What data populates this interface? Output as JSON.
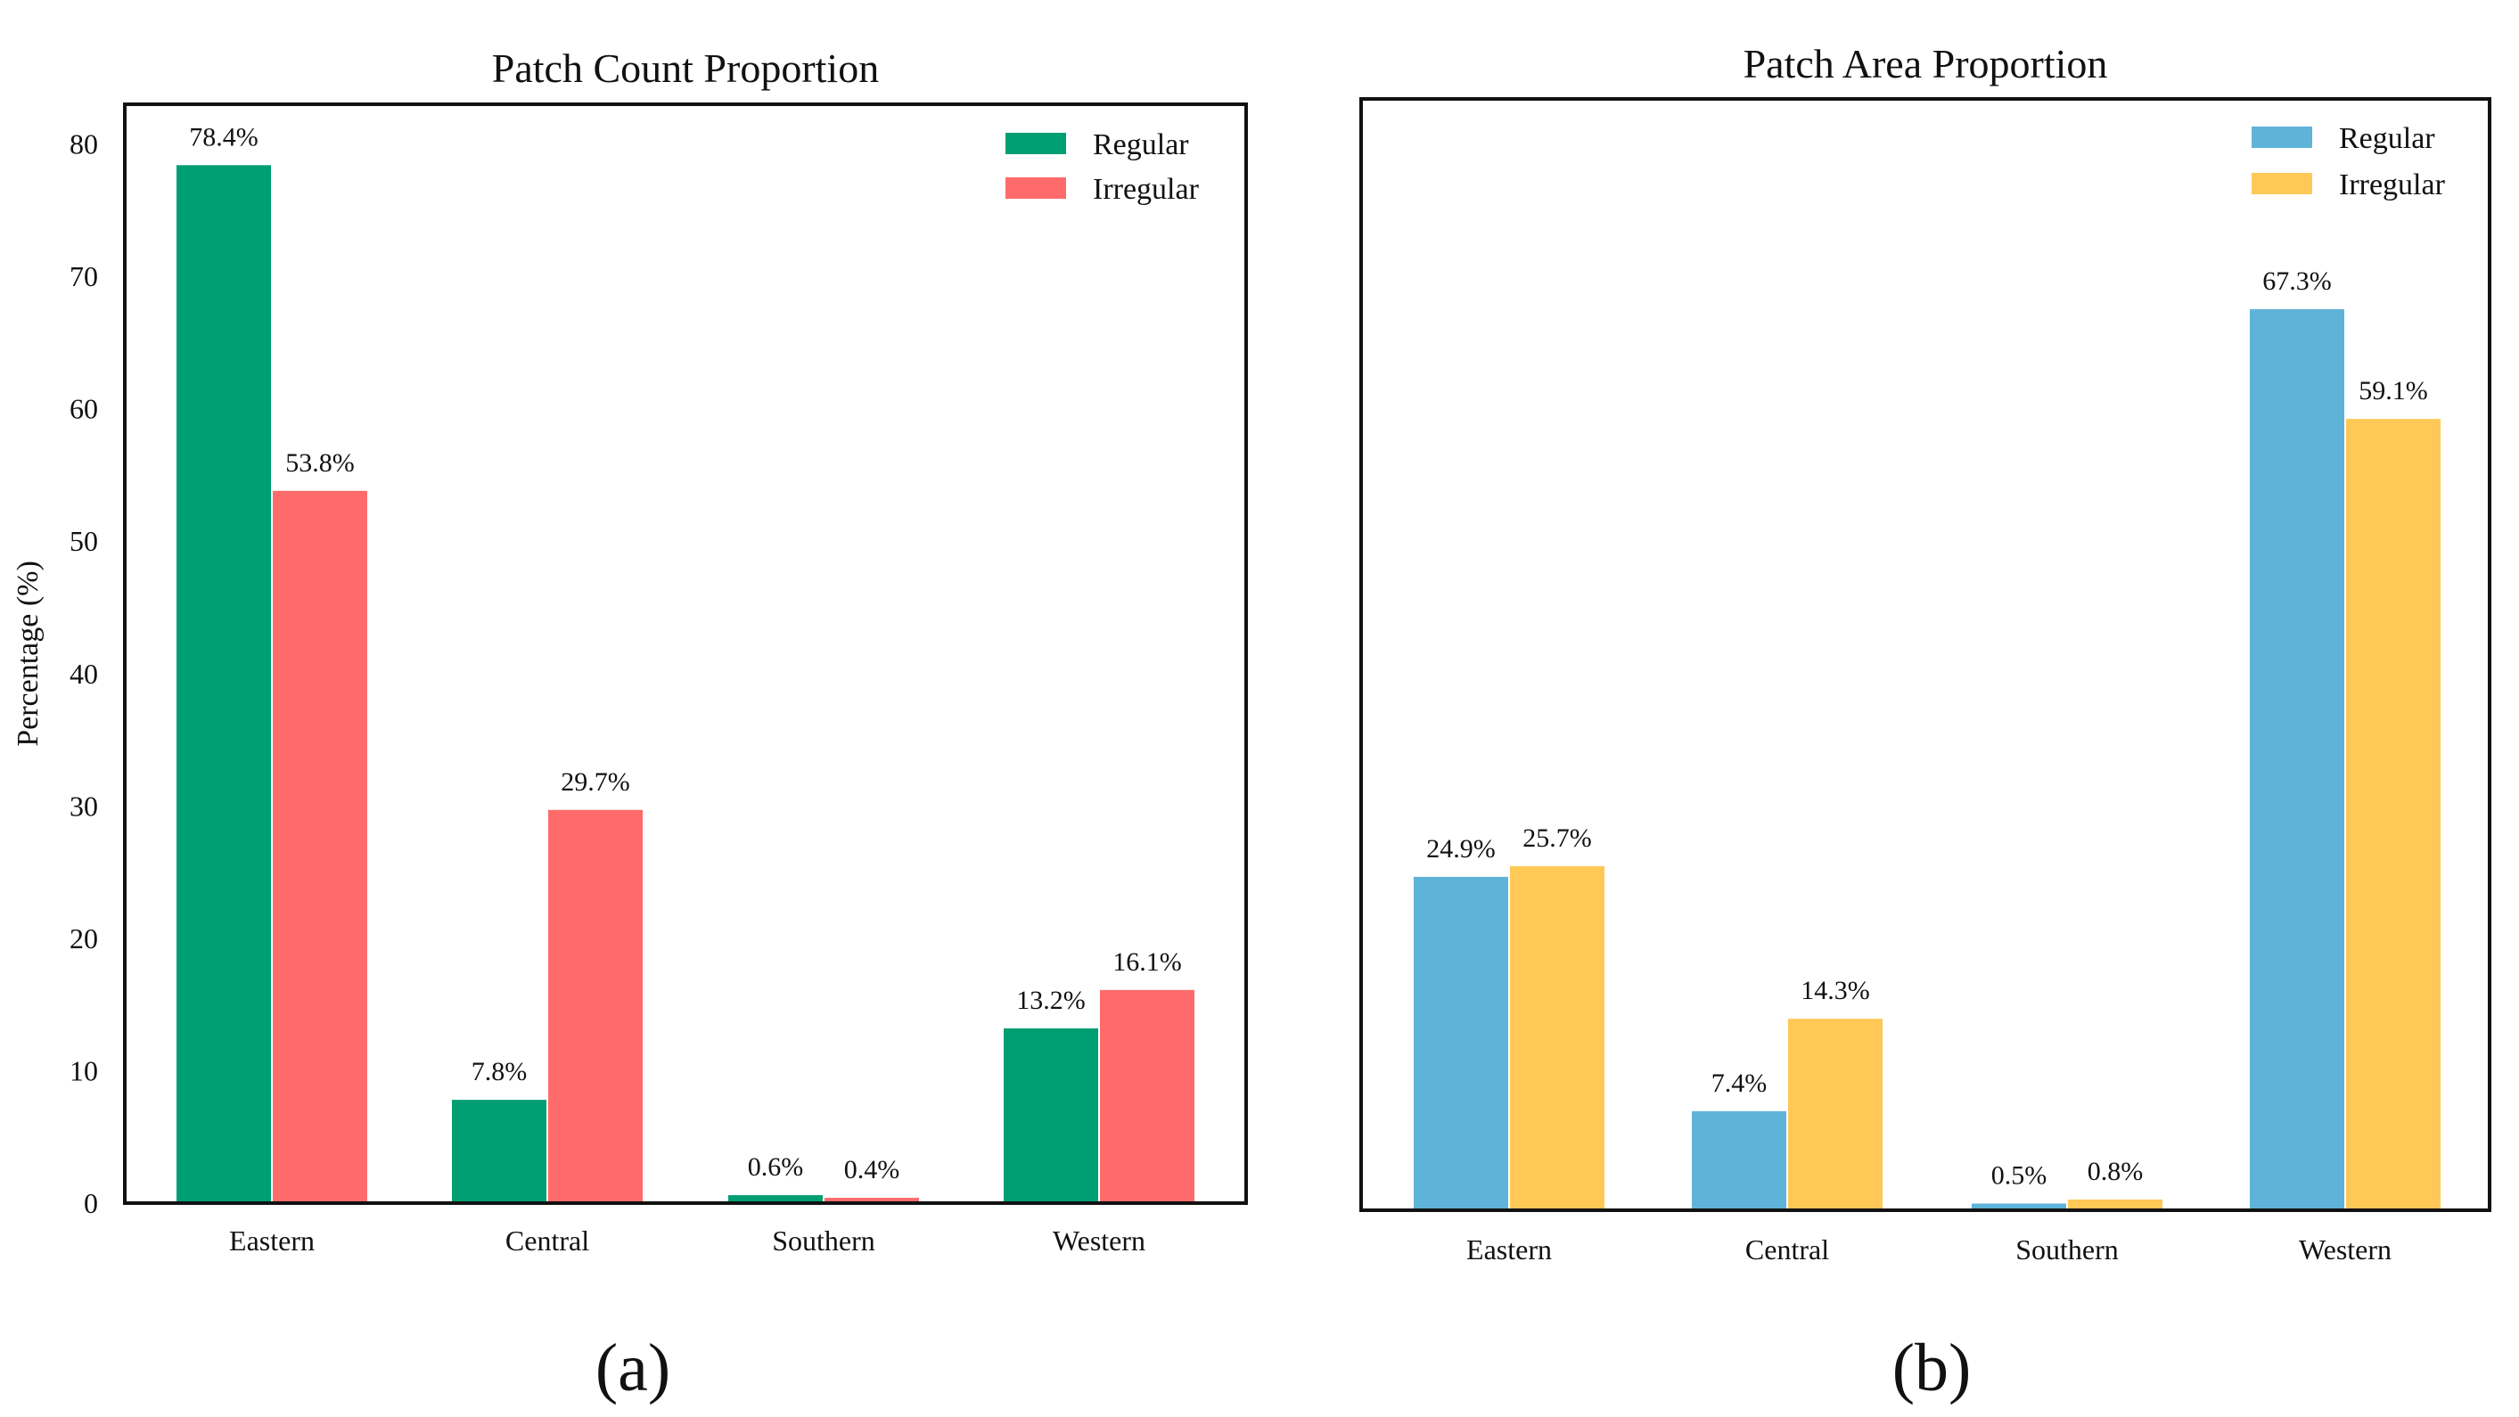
{
  "chart_data": [
    {
      "type": "bar",
      "title": "Patch Count Proportion",
      "xlabel": "",
      "ylabel": "Percentage (%)",
      "categories": [
        "Eastern",
        "Central",
        "Southern",
        "Western"
      ],
      "series": [
        {
          "name": "Regular",
          "color": "#009E73",
          "values": [
            78.4,
            7.8,
            0.6,
            13.2
          ],
          "labels": [
            "78.4%",
            "7.8%",
            "0.6%",
            "13.2%"
          ]
        },
        {
          "name": "Irregular",
          "color": "#FF6B6B",
          "values": [
            53.8,
            29.7,
            0.4,
            16.1
          ],
          "labels": [
            "53.8%",
            "29.7%",
            "0.4%",
            "16.1%"
          ]
        }
      ],
      "ylim": [
        0,
        83
      ],
      "yticks": [
        0,
        10,
        20,
        30,
        40,
        50,
        60,
        70,
        80
      ],
      "show_yticks": true,
      "legend_position": "top-right",
      "panel_label": "(a)"
    },
    {
      "type": "bar",
      "title": "Patch Area Proportion",
      "xlabel": "",
      "ylabel": "",
      "categories": [
        "Eastern",
        "Central",
        "Southern",
        "Western"
      ],
      "series": [
        {
          "name": "Regular",
          "color": "#5FB3D9",
          "values": [
            24.9,
            7.4,
            0.5,
            67.3
          ],
          "labels": [
            "24.9%",
            "7.4%",
            "0.5%",
            "67.3%"
          ]
        },
        {
          "name": "Irregular",
          "color": "#FFC857",
          "values": [
            25.7,
            14.3,
            0.8,
            59.1
          ],
          "labels": [
            "25.7%",
            "14.3%",
            "0.8%",
            "59.1%"
          ]
        }
      ],
      "ylim": [
        0,
        83
      ],
      "yticks": [],
      "show_yticks": false,
      "legend_position": "top-right",
      "panel_label": "(b)"
    }
  ]
}
